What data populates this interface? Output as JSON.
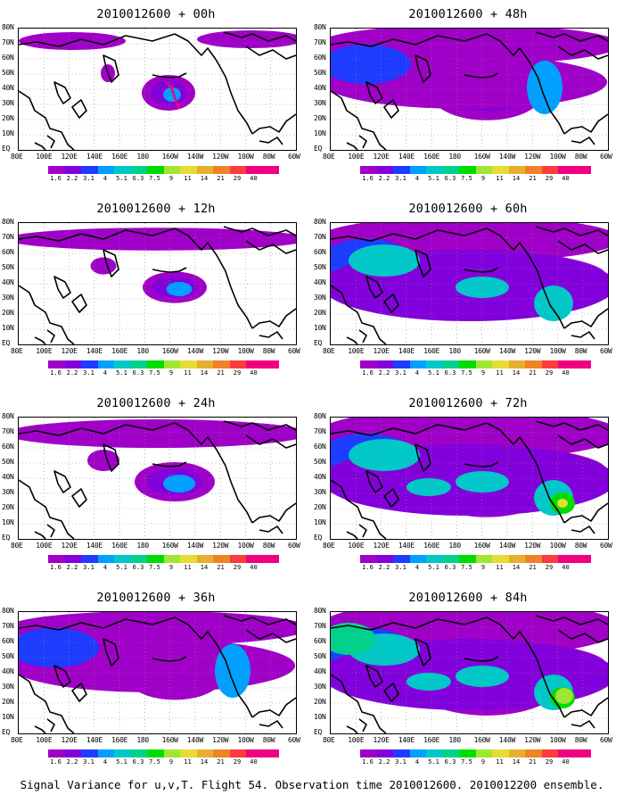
{
  "figure": {
    "caption": "Signal Variance for u,v,T. Flight 54. Observation time 2010012600. 2010012200 ensemble.",
    "lat_labels": [
      "80N",
      "70N",
      "60N",
      "50N",
      "40N",
      "30N",
      "20N",
      "10N",
      "EQ"
    ],
    "lon_labels": [
      "80E",
      "100E",
      "120E",
      "140E",
      "160E",
      "180",
      "160W",
      "140W",
      "120W",
      "100W",
      "80W",
      "60W"
    ],
    "colorbar": {
      "levels": [
        "1.6",
        "2.2",
        "3.1",
        "4",
        "5.1",
        "6.3",
        "7.5",
        "9",
        "11",
        "14",
        "21",
        "29",
        "40"
      ],
      "colors": [
        "#a000c8",
        "#8200dc",
        "#1e3cff",
        "#00a0ff",
        "#00c8c8",
        "#00d28c",
        "#00dc00",
        "#a0e632",
        "#e6dc32",
        "#e6af2d",
        "#f08228",
        "#fa3c3c",
        "#f00082"
      ]
    },
    "panels": [
      {
        "id": "p0",
        "title": "2010012600 + 00h",
        "intensity": 0
      },
      {
        "id": "p1",
        "title": "2010012600 + 12h",
        "intensity": 1
      },
      {
        "id": "p2",
        "title": "2010012600 + 24h",
        "intensity": 2
      },
      {
        "id": "p3",
        "title": "2010012600 + 36h",
        "intensity": 3
      },
      {
        "id": "p4",
        "title": "2010012600 + 48h",
        "intensity": 4
      },
      {
        "id": "p5",
        "title": "2010012600 + 60h",
        "intensity": 5
      },
      {
        "id": "p6",
        "title": "2010012600 + 72h",
        "intensity": 6
      },
      {
        "id": "p7",
        "title": "2010012600 + 84h",
        "intensity": 7
      }
    ]
  }
}
